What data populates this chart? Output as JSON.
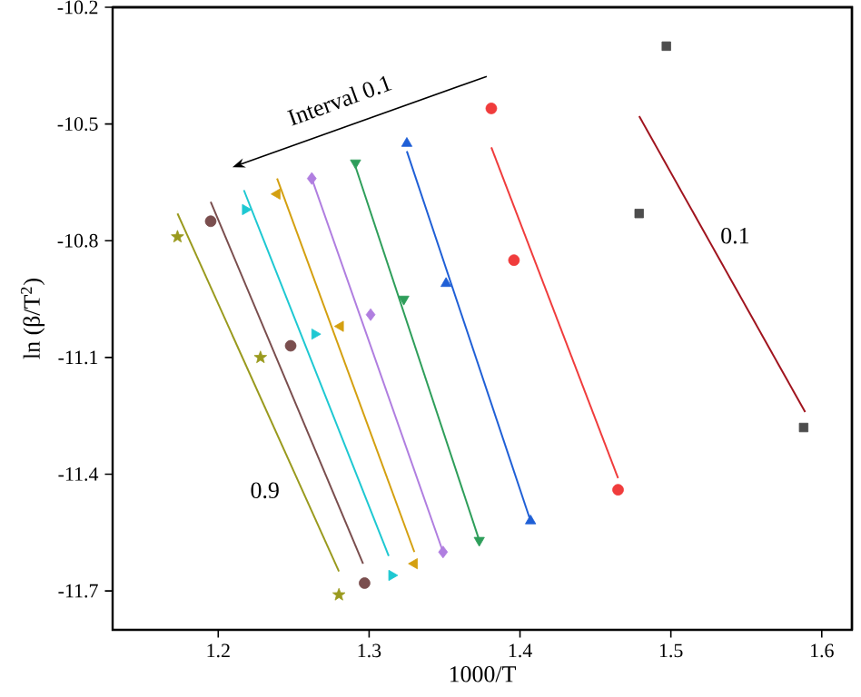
{
  "chart_data": {
    "type": "scatter",
    "xlabel": "1000/T",
    "ylabel": "ln (β/T$^{2}$)",
    "xlim": [
      1.13,
      1.62
    ],
    "ylim": [
      -11.8,
      -10.2
    ],
    "xticks": [
      1.2,
      1.3,
      1.4,
      1.5,
      1.6
    ],
    "yticks": [
      -11.7,
      -11.4,
      -11.1,
      -10.8,
      -10.5,
      -10.2
    ],
    "grid": false,
    "annotations": [
      "Interval 0.1",
      "0.1",
      "0.9"
    ],
    "series": [
      {
        "color": "#4d4d4d",
        "marker": "square",
        "x": [
          1.497,
          1.479,
          1.588
        ],
        "values": [
          -10.3,
          -10.73,
          -11.28
        ]
      },
      {
        "type": "line",
        "color": "#a0141e",
        "x": [
          1.479,
          1.589
        ],
        "values": [
          -10.48,
          -11.24
        ]
      },
      {
        "color": "#f03c3c",
        "marker": "circle",
        "x": [
          1.381,
          1.396,
          1.465
        ],
        "values": [
          -10.46,
          -10.85,
          -11.44
        ]
      },
      {
        "type": "line",
        "color": "#f03c3c",
        "x": [
          1.381,
          1.465
        ],
        "values": [
          -10.56,
          -11.41
        ]
      },
      {
        "color": "#1f5fd6",
        "marker": "triangle",
        "x": [
          1.325,
          1.351,
          1.407
        ],
        "values": [
          -10.55,
          -10.91,
          -11.52
        ]
      },
      {
        "type": "line",
        "color": "#1f5fd6",
        "x": [
          1.325,
          1.407
        ],
        "values": [
          -10.57,
          -11.52
        ]
      },
      {
        "color": "#2e9e5a",
        "marker": "triangle-down",
        "x": [
          1.291,
          1.323,
          1.373
        ],
        "values": [
          -10.6,
          -10.95,
          -11.57
        ]
      },
      {
        "type": "line",
        "color": "#2e9e5a",
        "x": [
          1.291,
          1.373
        ],
        "values": [
          -10.61,
          -11.57
        ]
      },
      {
        "color": "#b07ee0",
        "marker": "diamond",
        "x": [
          1.262,
          1.301,
          1.349
        ],
        "values": [
          -10.64,
          -10.99,
          -11.6
        ]
      },
      {
        "type": "line",
        "color": "#b07ee0",
        "x": [
          1.262,
          1.349
        ],
        "values": [
          -10.64,
          -11.6
        ]
      },
      {
        "color": "#d4a010",
        "marker": "triangle-left",
        "x": [
          1.239,
          1.281,
          1.33
        ],
        "values": [
          -10.68,
          -11.02,
          -11.63
        ]
      },
      {
        "type": "line",
        "color": "#d4a010",
        "x": [
          1.239,
          1.33
        ],
        "values": [
          -10.64,
          -11.6
        ]
      },
      {
        "color": "#1ec8d2",
        "marker": "triangle-right",
        "x": [
          1.218,
          1.264,
          1.315
        ],
        "values": [
          -10.72,
          -11.04,
          -11.66
        ]
      },
      {
        "type": "line",
        "color": "#1ec8d2",
        "x": [
          1.217,
          1.313
        ],
        "values": [
          -10.67,
          -11.61
        ]
      },
      {
        "color": "#7a4e4e",
        "marker": "circle",
        "x": [
          1.195,
          1.248,
          1.297
        ],
        "values": [
          -10.75,
          -11.07,
          -11.68
        ]
      },
      {
        "type": "line",
        "color": "#7a4e4e",
        "x": [
          1.195,
          1.296
        ],
        "values": [
          -10.7,
          -11.63
        ]
      },
      {
        "color": "#9a9a1e",
        "marker": "star",
        "x": [
          1.173,
          1.228,
          1.28
        ],
        "values": [
          -10.79,
          -11.1,
          -11.71
        ]
      },
      {
        "type": "line",
        "color": "#9a9a1e",
        "x": [
          1.173,
          1.28
        ],
        "values": [
          -10.73,
          -11.65
        ]
      }
    ]
  }
}
